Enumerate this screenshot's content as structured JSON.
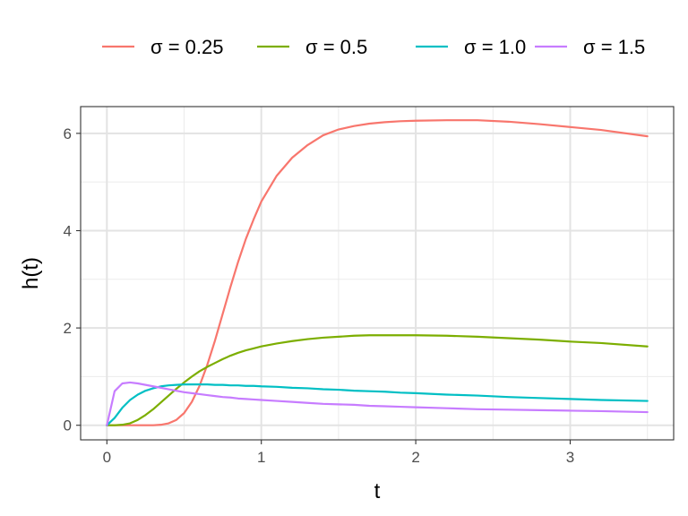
{
  "chart_data": {
    "type": "line",
    "title": "",
    "xlabel": "t",
    "ylabel": "h(t)",
    "xlim": [
      -0.17,
      3.67
    ],
    "ylim": [
      -0.3,
      6.55
    ],
    "x_ticks": [
      0,
      1,
      2,
      3
    ],
    "x_tick_labels": [
      "0",
      "1",
      "2",
      "3"
    ],
    "y_ticks": [
      0,
      2,
      4,
      6
    ],
    "y_tick_labels": [
      "0",
      "2",
      "4",
      "6"
    ],
    "grid": true,
    "legend_position": "top",
    "x": [
      0,
      0.05,
      0.1,
      0.15,
      0.2,
      0.25,
      0.3,
      0.35,
      0.4,
      0.45,
      0.5,
      0.55,
      0.6,
      0.65,
      0.7,
      0.75,
      0.8,
      0.85,
      0.9,
      0.95,
      1,
      1.1,
      1.2,
      1.3,
      1.4,
      1.5,
      1.6,
      1.7,
      1.8,
      1.9,
      2,
      2.2,
      2.4,
      2.6,
      2.8,
      3,
      3.2,
      3.5
    ],
    "series": [
      {
        "name": "σ = 0.25",
        "color": "#F8766D",
        "values": [
          0,
          0,
          0,
          0,
          0,
          0,
          0,
          0.01,
          0.04,
          0.11,
          0.25,
          0.48,
          0.81,
          1.24,
          1.74,
          2.29,
          2.84,
          3.36,
          3.83,
          4.23,
          4.6,
          5.13,
          5.5,
          5.76,
          5.96,
          6.08,
          6.15,
          6.2,
          6.23,
          6.25,
          6.26,
          6.27,
          6.27,
          6.24,
          6.19,
          6.13,
          6.07,
          5.94
        ]
      },
      {
        "name": "σ = 0.5",
        "color": "#7CAE00",
        "values": [
          0,
          0,
          0.01,
          0.04,
          0.11,
          0.21,
          0.33,
          0.47,
          0.61,
          0.75,
          0.88,
          1.0,
          1.11,
          1.2,
          1.28,
          1.36,
          1.43,
          1.49,
          1.54,
          1.58,
          1.62,
          1.68,
          1.73,
          1.77,
          1.8,
          1.82,
          1.84,
          1.85,
          1.85,
          1.85,
          1.85,
          1.84,
          1.82,
          1.79,
          1.76,
          1.72,
          1.69,
          1.62
        ]
      },
      {
        "name": "σ = 1.0",
        "color": "#00BFC4",
        "values": [
          0,
          0.15,
          0.36,
          0.52,
          0.63,
          0.71,
          0.76,
          0.8,
          0.82,
          0.83,
          0.84,
          0.84,
          0.84,
          0.84,
          0.83,
          0.83,
          0.82,
          0.82,
          0.81,
          0.81,
          0.8,
          0.79,
          0.77,
          0.76,
          0.74,
          0.73,
          0.71,
          0.7,
          0.69,
          0.67,
          0.66,
          0.63,
          0.61,
          0.58,
          0.56,
          0.54,
          0.52,
          0.5
        ]
      },
      {
        "name": "σ = 1.5",
        "color": "#C77CFF",
        "values": [
          0,
          0.7,
          0.86,
          0.88,
          0.86,
          0.83,
          0.8,
          0.77,
          0.74,
          0.71,
          0.68,
          0.66,
          0.64,
          0.62,
          0.6,
          0.58,
          0.57,
          0.55,
          0.54,
          0.53,
          0.52,
          0.5,
          0.48,
          0.46,
          0.44,
          0.43,
          0.42,
          0.4,
          0.39,
          0.38,
          0.37,
          0.35,
          0.33,
          0.32,
          0.31,
          0.3,
          0.29,
          0.27
        ]
      }
    ]
  }
}
